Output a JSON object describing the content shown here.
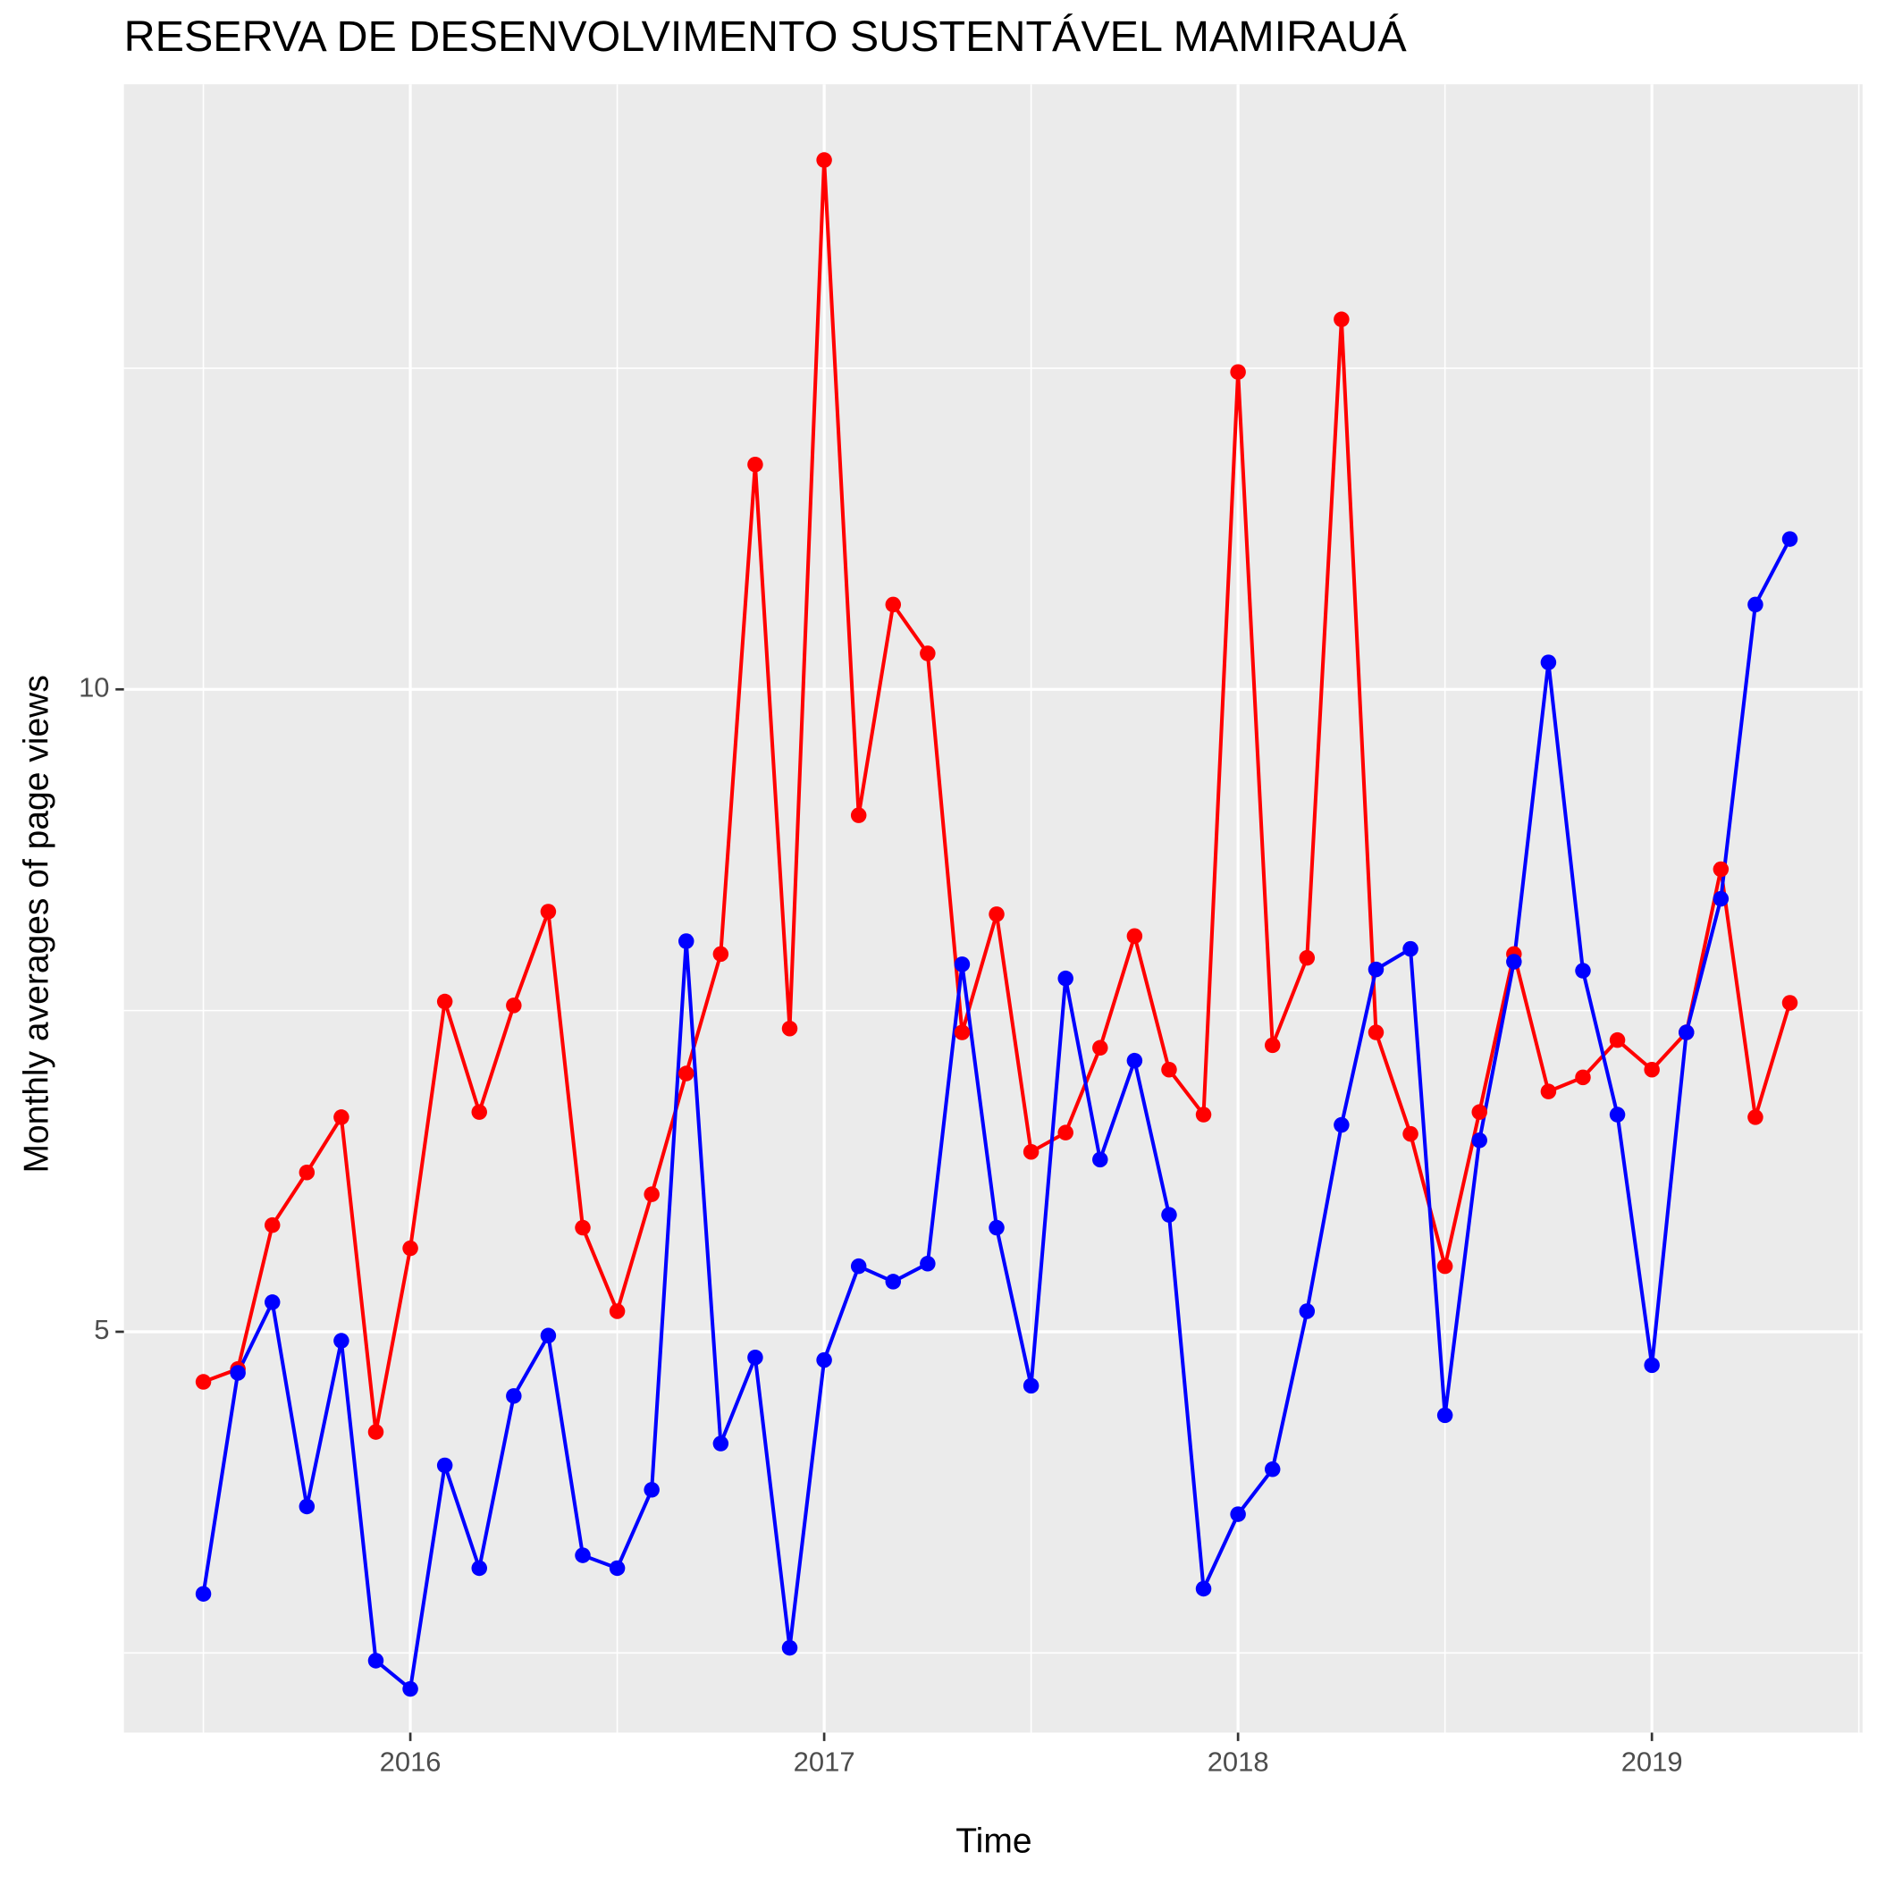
{
  "chart_data": {
    "type": "line",
    "title": "RESERVA DE DESENVOLVIMENTO SUSTENTÁVEL MAMIRAUÁ",
    "xlabel": "Time",
    "ylabel": "Monthly averages of page views",
    "x": [
      "2015-07",
      "2015-08",
      "2015-09",
      "2015-10",
      "2015-11",
      "2015-12",
      "2016-01",
      "2016-02",
      "2016-03",
      "2016-04",
      "2016-05",
      "2016-06",
      "2016-07",
      "2016-08",
      "2016-09",
      "2016-10",
      "2016-11",
      "2016-12",
      "2017-01",
      "2017-02",
      "2017-03",
      "2017-04",
      "2017-05",
      "2017-06",
      "2017-07",
      "2017-08",
      "2017-09",
      "2017-10",
      "2017-11",
      "2017-12",
      "2018-01",
      "2018-02",
      "2018-03",
      "2018-04",
      "2018-05",
      "2018-06",
      "2018-07",
      "2018-08",
      "2018-09",
      "2018-10",
      "2018-11",
      "2018-12",
      "2019-01",
      "2019-02",
      "2019-03",
      "2019-04",
      "2019-05"
    ],
    "series": [
      {
        "color": "#ff0000",
        "values": [
          4.61,
          4.71,
          5.83,
          6.24,
          6.67,
          4.22,
          5.65,
          7.57,
          6.71,
          7.54,
          8.27,
          5.81,
          5.16,
          6.07,
          7.01,
          7.94,
          11.75,
          7.36,
          14.12,
          9.02,
          10.66,
          10.28,
          7.33,
          8.25,
          6.4,
          6.55,
          7.21,
          8.08,
          7.04,
          6.69,
          12.47,
          7.23,
          7.91,
          12.88,
          7.33,
          6.54,
          5.51,
          6.71,
          7.94,
          6.87,
          6.98,
          7.27,
          7.04,
          7.33,
          8.6,
          6.67,
          7.56
        ]
      },
      {
        "color": "#0000ff",
        "values": [
          2.96,
          4.68,
          5.23,
          3.64,
          4.93,
          2.44,
          2.22,
          3.96,
          3.16,
          4.5,
          4.97,
          3.26,
          3.16,
          3.77,
          8.04,
          4.13,
          4.8,
          2.54,
          4.78,
          5.51,
          5.39,
          5.53,
          7.86,
          5.81,
          4.58,
          7.75,
          6.34,
          7.11,
          5.91,
          3.0,
          3.58,
          3.93,
          5.16,
          6.61,
          7.82,
          7.98,
          4.35,
          6.49,
          7.88,
          10.21,
          7.81,
          6.69,
          4.74,
          7.33,
          8.37,
          10.66,
          11.17
        ]
      }
    ],
    "xlim": [
      2015.308,
      2019.509
    ],
    "xticks": [
      2016,
      2017,
      2018,
      2019
    ],
    "minor_xticks": [
      2015.5,
      2016.5,
      2017.5,
      2018.5,
      2019.5
    ],
    "ylim": [
      1.88,
      14.71
    ],
    "yticks": [
      5,
      10
    ],
    "minor_yticks": [
      2.5,
      7.5,
      12.5
    ],
    "grid": true,
    "panel_color": "#ebebeb"
  }
}
